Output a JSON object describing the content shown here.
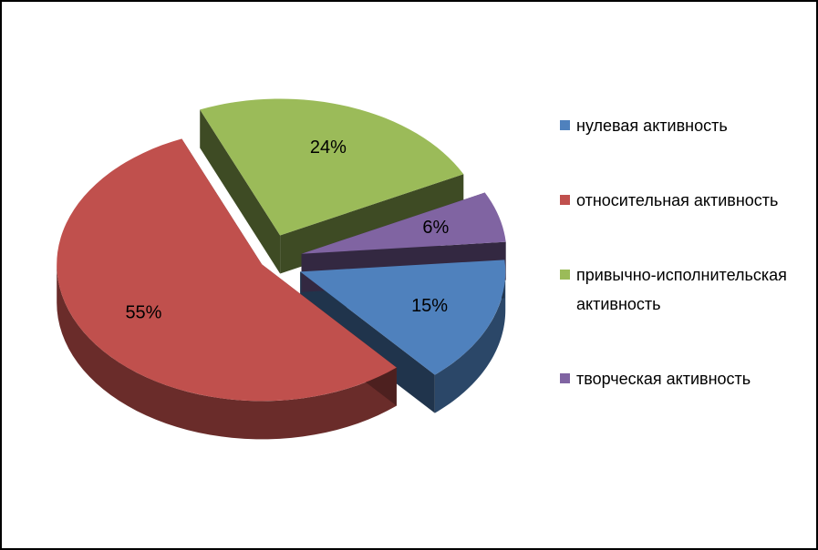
{
  "chart_data": {
    "type": "pie3d",
    "categories": [
      "нулевая активность",
      "относительная активность",
      "привычно-исполнительская активность",
      "творческая активность"
    ],
    "values": [
      15,
      55,
      24,
      6
    ],
    "value_labels": [
      "15%",
      "55%",
      "24%",
      "6%"
    ],
    "colors": [
      "#4f81bd",
      "#c0504d",
      "#9bbb59",
      "#8064a2"
    ],
    "legend": "right"
  }
}
